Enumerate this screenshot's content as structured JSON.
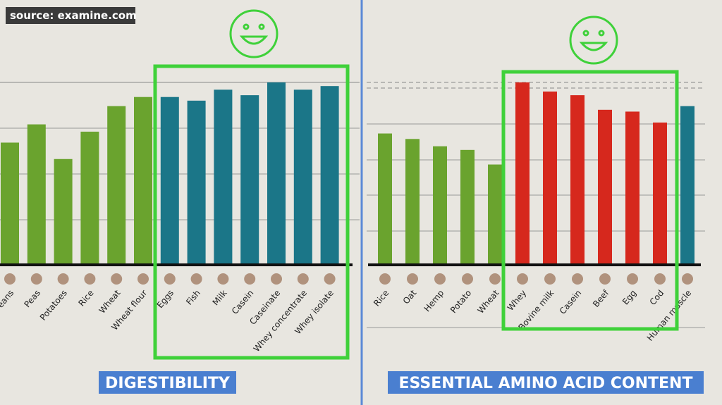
{
  "source": "source: examine.com",
  "chart_data": [
    {
      "type": "bar",
      "title": "DIGESTIBILITY",
      "categories": [
        "eans",
        "Peas",
        "Potatoes",
        "Rice",
        "Wheat",
        "Wheat flour",
        "Eggs",
        "Fish",
        "Milk",
        "Casein",
        "Caseinate",
        "Whey concentrate",
        "Whey isolate"
      ],
      "values": [
        67,
        77,
        58,
        73,
        87,
        92,
        92,
        90,
        96,
        93,
        100,
        96,
        98
      ],
      "colors": [
        "#6aa32e",
        "#6aa32e",
        "#6aa32e",
        "#6aa32e",
        "#6aa32e",
        "#6aa32e",
        "#1b7688",
        "#1b7688",
        "#1b7688",
        "#1b7688",
        "#1b7688",
        "#1b7688",
        "#1b7688"
      ],
      "ylim": [
        0,
        100
      ]
    },
    {
      "type": "bar",
      "title": "ESSENTIAL AMINO ACID CONTENT",
      "categories": [
        "Rice",
        "Oat",
        "Hemp",
        "Potato",
        "Wheat",
        "Whey",
        "Bovine milk",
        "Casein",
        "Beef",
        "Egg",
        "Cod",
        "Human muscle"
      ],
      "values": [
        72,
        69,
        65,
        63,
        55,
        100,
        95,
        93,
        85,
        84,
        78,
        87
      ],
      "colors": [
        "#6aa32e",
        "#6aa32e",
        "#6aa32e",
        "#6aa32e",
        "#6aa32e",
        "#d6281d",
        "#d6281d",
        "#d6281d",
        "#d6281d",
        "#d6281d",
        "#d6281d",
        "#1b7688"
      ],
      "ylim": [
        0,
        100
      ]
    }
  ]
}
